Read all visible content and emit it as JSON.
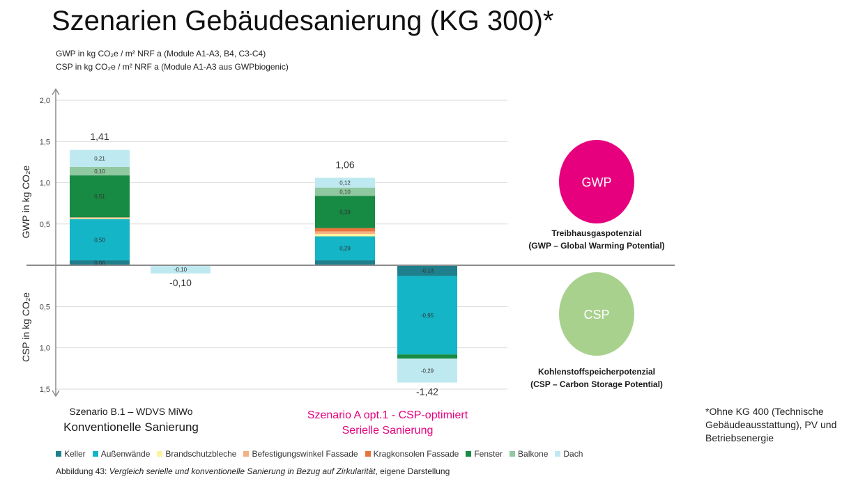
{
  "title": "Szenarien Gebäudesanierung (KG 300)*",
  "subtitle_lines": [
    "GWP in kg CO₂e / m² NRF a (Module A1-A3, B4, C3-C4)",
    "CSP in kg CO₂e / m² NRF a (Module A1-A3 aus GWPbiogenic)"
  ],
  "ylabel_gwp": "GWP in kg CO₂e",
  "ylabel_csp": "CSP in kg CO₂e",
  "scenarios": {
    "b1": {
      "line1": "Szenario B.1 – WDVS MiWo",
      "line2": "Konventionelle Sanierung"
    },
    "a_opt1": {
      "line1": "Szenario A opt.1 - CSP-optimiert",
      "line2": "Serielle Sanierung"
    }
  },
  "circles": {
    "gwp": {
      "label": "GWP",
      "desc1": "Treibhausgaspotenzial",
      "desc2": "(GWP – Global Warming Potential)",
      "color": "#e6007e"
    },
    "csp": {
      "label": "CSP",
      "desc1": "Kohlenstoffspeicherpotenzial",
      "desc2": "(CSP – Carbon Storage Potential)",
      "color": "#a9d18e"
    }
  },
  "footnote": "*Ohne KG 400 (Technische Gebäudeausstattung), PV und Betriebsenergie",
  "caption": {
    "prefix": "Abbildung 43: ",
    "italic": "Vergleich serielle und konventionelle Sanierung in Bezug auf Zirkularität",
    "suffix": ", eigene Darstellung"
  },
  "chart_data": {
    "type": "bar",
    "stacked": true,
    "categories": [
      "Szenario B.1 – WDVS MiWo",
      "Szenario A opt.1 - CSP-optimiert"
    ],
    "y_ticks_gwp": [
      "2,0",
      "1,5",
      "1,0",
      "0,5"
    ],
    "y_ticks_csp": [
      "0,5",
      "1,0",
      "1,5"
    ],
    "ylim_gwp": [
      0,
      2.0
    ],
    "ylim_csp": [
      0,
      1.5
    ],
    "grid": true,
    "legend_position": "bottom",
    "series": [
      {
        "name": "Keller",
        "color": "#1f7f8c"
      },
      {
        "name": "Außenwände",
        "color": "#13b5c6"
      },
      {
        "name": "Brandschutzbleche",
        "color": "#fff2a0"
      },
      {
        "name": "Befestigungswinkel Fassade",
        "color": "#f4b183"
      },
      {
        "name": "Kragkonsolen Fassade",
        "color": "#e8743b"
      },
      {
        "name": "Fenster",
        "color": "#178a44"
      },
      {
        "name": "Balkone",
        "color": "#90c8a0"
      },
      {
        "name": "Dach",
        "color": "#bfe9f0"
      }
    ],
    "bars": [
      {
        "scenario": "B.1",
        "kind": "GWP",
        "total_label": "1,41",
        "total": 1.41,
        "segments": [
          {
            "series": "Keller",
            "value": 0.06,
            "label": "0,06"
          },
          {
            "series": "Außenwände",
            "value": 0.5,
            "label": "0,50"
          },
          {
            "series": "Brandschutzbleche",
            "value": 0.01,
            "label": ""
          },
          {
            "series": "Befestigungswinkel Fassade",
            "value": 0.01,
            "label": ""
          },
          {
            "series": "Fenster",
            "value": 0.51,
            "label": "0,51"
          },
          {
            "series": "Balkone",
            "value": 0.1,
            "label": "0,10"
          },
          {
            "series": "Dach",
            "value": 0.21,
            "label": "0,21"
          }
        ]
      },
      {
        "scenario": "B.1",
        "kind": "CSP",
        "total_label": "-0,10",
        "total": -0.1,
        "segments": [
          {
            "series": "Dach",
            "value": 0.1,
            "label": "-0,10"
          }
        ]
      },
      {
        "scenario": "A opt.1",
        "kind": "GWP",
        "total_label": "1,06",
        "total": 1.06,
        "segments": [
          {
            "series": "Keller",
            "value": 0.06,
            "label": ""
          },
          {
            "series": "Außenwände",
            "value": 0.29,
            "label": "0,29"
          },
          {
            "series": "Brandschutzbleche",
            "value": 0.03,
            "label": ""
          },
          {
            "series": "Befestigungswinkel Fassade",
            "value": 0.03,
            "label": ""
          },
          {
            "series": "Kragkonsolen Fassade",
            "value": 0.04,
            "label": ""
          },
          {
            "series": "Fenster",
            "value": 0.39,
            "label": "0,39"
          },
          {
            "series": "Balkone",
            "value": 0.1,
            "label": "0,10"
          },
          {
            "series": "Dach",
            "value": 0.12,
            "label": "0,12"
          }
        ]
      },
      {
        "scenario": "A opt.1",
        "kind": "CSP",
        "total_label": "-1,42",
        "total": -1.42,
        "segments": [
          {
            "series": "Keller",
            "value": 0.13,
            "label": "-0,13"
          },
          {
            "series": "Außenwände",
            "value": 0.95,
            "label": "-0,95"
          },
          {
            "series": "Fenster",
            "value": 0.05,
            "label": ""
          },
          {
            "series": "Dach",
            "value": 0.29,
            "label": "-0,29"
          }
        ]
      }
    ]
  }
}
